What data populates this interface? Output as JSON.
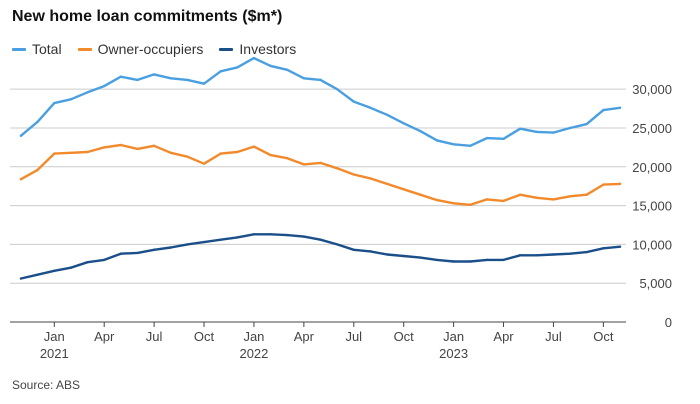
{
  "title": "New home loan commitments ($m*)",
  "source": "Source: ABS",
  "legend": [
    {
      "label": "Total",
      "color": "#4a9fe0"
    },
    {
      "label": "Owner-occupiers",
      "color": "#f28a2c"
    },
    {
      "label": "Investors",
      "color": "#1b4f8a"
    }
  ],
  "chart_data": {
    "type": "line",
    "title": "New home loan commitments ($m*)",
    "xlabel": "",
    "ylabel": "",
    "ylim": [
      0,
      33500
    ],
    "y_ticks": [
      0,
      5000,
      10000,
      15000,
      20000,
      25000,
      30000
    ],
    "y_tick_labels": [
      "0",
      "5,000",
      "10,000",
      "15,000",
      "20,000",
      "25,000",
      "30,000"
    ],
    "grid": true,
    "legend_position": "top-left",
    "x": [
      "2020-11",
      "2020-12",
      "2021-01",
      "2021-02",
      "2021-03",
      "2021-04",
      "2021-05",
      "2021-06",
      "2021-07",
      "2021-08",
      "2021-09",
      "2021-10",
      "2021-11",
      "2021-12",
      "2022-01",
      "2022-02",
      "2022-03",
      "2022-04",
      "2022-05",
      "2022-06",
      "2022-07",
      "2022-08",
      "2022-09",
      "2022-10",
      "2022-11",
      "2022-12",
      "2023-01",
      "2023-02",
      "2023-03",
      "2023-04",
      "2023-05",
      "2023-06",
      "2023-07",
      "2023-08",
      "2023-09",
      "2023-10",
      "2023-11"
    ],
    "x_ticks": [
      {
        "month": "Jan",
        "year": "2021",
        "x": "2021-01"
      },
      {
        "month": "Apr",
        "year": "",
        "x": "2021-04"
      },
      {
        "month": "Jul",
        "year": "",
        "x": "2021-07"
      },
      {
        "month": "Oct",
        "year": "",
        "x": "2021-10"
      },
      {
        "month": "Jan",
        "year": "2022",
        "x": "2022-01"
      },
      {
        "month": "Apr",
        "year": "",
        "x": "2022-04"
      },
      {
        "month": "Jul",
        "year": "",
        "x": "2022-07"
      },
      {
        "month": "Oct",
        "year": "",
        "x": "2022-10"
      },
      {
        "month": "Jan",
        "year": "2023",
        "x": "2023-01"
      },
      {
        "month": "Apr",
        "year": "",
        "x": "2023-04"
      },
      {
        "month": "Jul",
        "year": "",
        "x": "2023-07"
      },
      {
        "month": "Oct",
        "year": "",
        "x": "2023-10"
      }
    ],
    "series": [
      {
        "name": "Total",
        "color": "#4a9fe0",
        "values": [
          24000,
          25800,
          28200,
          28700,
          29600,
          30400,
          31600,
          31200,
          31900,
          31400,
          31200,
          30700,
          32300,
          32800,
          34000,
          33000,
          32500,
          31400,
          31200,
          30000,
          28400,
          27600,
          26700,
          25600,
          24600,
          23400,
          22900,
          22700,
          23700,
          23600,
          24900,
          24500,
          24400,
          25000,
          25500,
          27300,
          27600
        ]
      },
      {
        "name": "Owner-occupiers",
        "color": "#f28a2c",
        "values": [
          18400,
          19600,
          21700,
          21800,
          21900,
          22500,
          22800,
          22300,
          22700,
          21800,
          21300,
          20400,
          21700,
          21900,
          22600,
          21500,
          21100,
          20300,
          20500,
          19800,
          19000,
          18500,
          17800,
          17100,
          16400,
          15700,
          15300,
          15100,
          15800,
          15600,
          16400,
          16000,
          15800,
          16200,
          16400,
          17700,
          17800
        ]
      },
      {
        "name": "Investors",
        "color": "#1b4f8a",
        "values": [
          5600,
          6100,
          6600,
          7000,
          7700,
          8000,
          8800,
          8900,
          9300,
          9600,
          10000,
          10300,
          10600,
          10900,
          11300,
          11300,
          11200,
          11000,
          10600,
          10000,
          9300,
          9100,
          8700,
          8500,
          8300,
          8000,
          7800,
          7800,
          8000,
          8000,
          8600,
          8600,
          8700,
          8800,
          9000,
          9500,
          9700
        ]
      }
    ]
  }
}
